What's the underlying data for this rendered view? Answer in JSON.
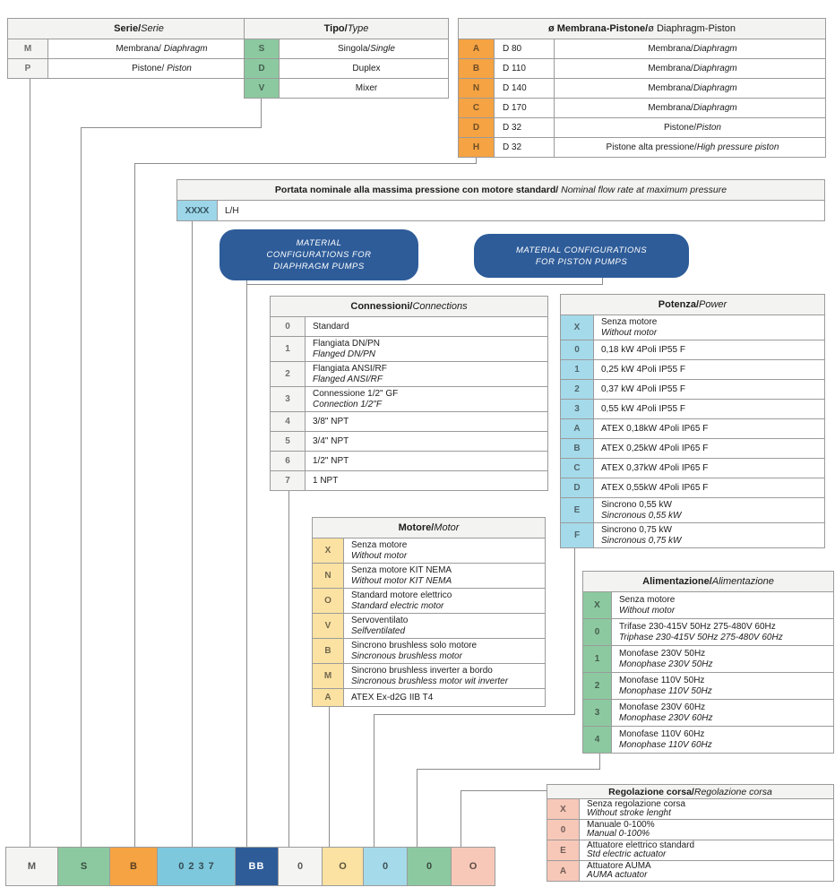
{
  "palette": {
    "green": "#8CC9A0",
    "orange": "#F5A343",
    "cyan": "#7EC8DE",
    "light_cyan": "#9DD6E8",
    "light_blue": "#A5DAEA",
    "dark_blue": "#2E5C99",
    "yellow": "#FBE2A2",
    "pink": "#F7C8B8",
    "off_white": "#F4F4F2",
    "header_bg": "#F3F3F1",
    "border": "#9B9B9B"
  },
  "serie": {
    "title": {
      "it": "Serie/",
      "en": "Serie"
    },
    "rows": [
      {
        "code": "M",
        "it": "Membrana/ ",
        "en": "Diaphragm"
      },
      {
        "code": "P",
        "it": "Pistone/ ",
        "en": "Piston"
      }
    ]
  },
  "tipo": {
    "title": {
      "it": "Tipo/",
      "en": "Type"
    },
    "rows": [
      {
        "code": "S",
        "it": "Singola/",
        "en": "Single"
      },
      {
        "code": "D",
        "it": "Duplex"
      },
      {
        "code": "V",
        "it": "Mixer"
      }
    ]
  },
  "membrana": {
    "title": {
      "it": "ø Membrana-Pistone/",
      "en": "ø Diaphragm-Piston"
    },
    "rows": [
      {
        "code": "A",
        "size": "D 80",
        "it": "Membrana/",
        "en": "Diaphragm"
      },
      {
        "code": "B",
        "size": "D 110",
        "it": "Membrana/",
        "en": "Diaphragm"
      },
      {
        "code": "N",
        "size": "D 140",
        "it": "Membrana/",
        "en": "Diaphragm"
      },
      {
        "code": "C",
        "size": "D 170",
        "it": "Membrana/",
        "en": "Diaphragm"
      },
      {
        "code": "D",
        "size": "D 32",
        "it": "Pistone/",
        "en": "Piston"
      },
      {
        "code": "H",
        "size": "D 32",
        "it": "Pistone alta pressione/",
        "en": "High pressure piston"
      }
    ]
  },
  "portata": {
    "title": {
      "it": "Portata nominale alla massima pressione con motore standard/",
      "en": " Nominal flow rate at maximum pressure"
    },
    "code": "XXXX",
    "unit": "L/H"
  },
  "material_boxes": [
    {
      "lines": [
        "MATERIAL",
        "CONFIGURATIONS FOR",
        "DIAPHRAGM PUMPS"
      ]
    },
    {
      "lines": [
        "MATERIAL CONFIGURATIONS",
        "FOR PISTON PUMPS"
      ]
    }
  ],
  "connessioni": {
    "title": {
      "it": "Connessioni/",
      "en": "Connections"
    },
    "rows": [
      {
        "code": "0",
        "it": "Standard"
      },
      {
        "code": "1",
        "it": "Flangiata DN/PN",
        "en": "Flanged DN/PN"
      },
      {
        "code": "2",
        "it": "Flangiata ANSI/RF",
        "en": "Flanged ANSI/RF"
      },
      {
        "code": "3",
        "it": "Connessione 1/2\" GF",
        "en": "Connection 1/2\"F"
      },
      {
        "code": "4",
        "it": "3/8\" NPT"
      },
      {
        "code": "5",
        "it": "3/4\" NPT"
      },
      {
        "code": "6",
        "it": "1/2\" NPT"
      },
      {
        "code": "7",
        "it": "1 NPT"
      }
    ]
  },
  "potenza": {
    "title": {
      "it": "Potenza/",
      "en": "Power"
    },
    "rows": [
      {
        "code": "X",
        "it": "Senza motore",
        "en": "Without motor"
      },
      {
        "code": "0",
        "it": "0,18 kW 4Poli IP55 F"
      },
      {
        "code": "1",
        "it": "0,25 kW 4Poli IP55 F"
      },
      {
        "code": "2",
        "it": "0,37 kW 4Poli IP55 F"
      },
      {
        "code": "3",
        "it": "0,55 kW 4Poli IP55 F"
      },
      {
        "code": "A",
        "it": "ATEX 0,18kW 4Poli IP65 F"
      },
      {
        "code": "B",
        "it": "ATEX 0,25kW 4Poli IP65 F"
      },
      {
        "code": "C",
        "it": "ATEX 0,37kW 4Poli IP65 F"
      },
      {
        "code": "D",
        "it": "ATEX 0,55kW 4Poli IP65 F"
      },
      {
        "code": "E",
        "it": "Sincrono 0,55 kW",
        "en": "Sincronous 0,55 kW"
      },
      {
        "code": "F",
        "it": "Sincrono 0,75 kW",
        "en": "Sincronous 0,75 kW"
      }
    ]
  },
  "motore": {
    "title": {
      "it": "Motore/",
      "en": "Motor"
    },
    "rows": [
      {
        "code": "X",
        "it": "Senza motore",
        "en": "Without motor"
      },
      {
        "code": "N",
        "it": "Senza motore KIT NEMA",
        "en": "Without motor KIT NEMA"
      },
      {
        "code": "O",
        "it": "Standard motore elettrico",
        "en": "Standard electric motor"
      },
      {
        "code": "V",
        "it": "Servoventilato",
        "en": "Selfventilated"
      },
      {
        "code": "B",
        "it": "Sincrono brushless solo motore",
        "en": "Sincronous brushless motor"
      },
      {
        "code": "M",
        "it": "Sincrono brushless inverter a bordo",
        "en": "Sincronous brushless motor wit inverter"
      },
      {
        "code": "A",
        "it": "ATEX Ex-d2G IIB T4"
      }
    ]
  },
  "alimentazione": {
    "title": {
      "it": "Alimentazione/",
      "en": "Alimentazione"
    },
    "rows": [
      {
        "code": "X",
        "it": "Senza motore",
        "en": "Without motor"
      },
      {
        "code": "0",
        "it": "Trifase 230-415V 50Hz 275-480V 60Hz",
        "en": "Triphase 230-415V 50Hz 275-480V 60Hz"
      },
      {
        "code": "1",
        "it": "Monofase 230V 50Hz",
        "en": "Monophase 230V 50Hz"
      },
      {
        "code": "2",
        "it": "Monofase 110V 50Hz",
        "en": "Monophase 110V 50Hz"
      },
      {
        "code": "3",
        "it": "Monofase 230V 60Hz",
        "en": "Monophase 230V 60Hz"
      },
      {
        "code": "4",
        "it": "Monofase 110V 60Hz",
        "en": "Monophase 110V 60Hz"
      }
    ]
  },
  "regolazione": {
    "title": {
      "it": "Regolazione corsa/",
      "en": "Regolazione corsa"
    },
    "rows": [
      {
        "code": "X",
        "it": "Senza regolazione corsa",
        "en": "Without stroke lenght"
      },
      {
        "code": "0",
        "it": "Manuale 0-100%",
        "en": "Manual 0-100%"
      },
      {
        "code": "E",
        "it": "Attuatore elettrico standard",
        "en": "Std electric actuator"
      },
      {
        "code": "A",
        "it": "Attuatore AUMA",
        "en": "AUMA actuator"
      }
    ]
  },
  "code_row": [
    {
      "label": "M",
      "color": "white"
    },
    {
      "label": "S",
      "color": "green"
    },
    {
      "label": "B",
      "color": "orange"
    },
    {
      "label": "0237",
      "color": "cyan"
    },
    {
      "label": "BB",
      "color": "darkblue"
    },
    {
      "label": "0",
      "color": "white"
    },
    {
      "label": "O",
      "color": "yellow"
    },
    {
      "label": "0",
      "color": "lightblue"
    },
    {
      "label": "0",
      "color": "green"
    },
    {
      "label": "O",
      "color": "pink"
    }
  ]
}
